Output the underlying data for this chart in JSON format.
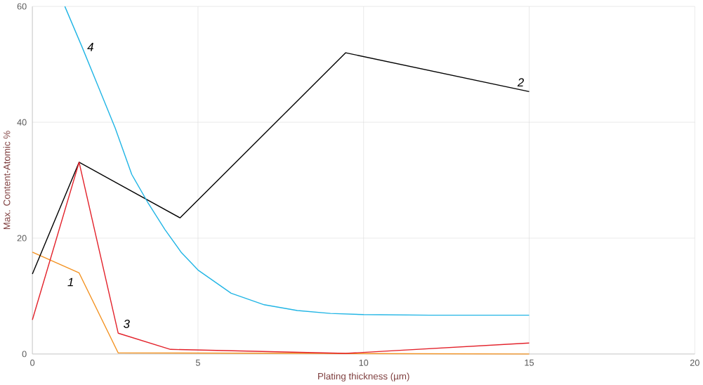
{
  "chart_data": {
    "type": "line",
    "xlabel": "Plating thickness (µm)",
    "ylabel": "Max. Content-Atomic %",
    "xlim": [
      0,
      20
    ],
    "xticks": [
      0,
      5,
      10,
      15,
      20
    ],
    "ylim": [
      0,
      60
    ],
    "yticks": [
      0,
      20,
      40,
      60
    ],
    "grid": true,
    "marker": "none",
    "line_style": "solid",
    "series": [
      {
        "name": "*1*",
        "color": "#f39221",
        "x": [
          0,
          1.41,
          2.59,
          8.8,
          15
        ],
        "values": [
          17.6,
          14,
          0.2,
          0.1,
          0
        ]
      },
      {
        "name": "*2*",
        "color": "#000000",
        "x": [
          0,
          1.41,
          4.46,
          9.46,
          15
        ],
        "values": [
          13.8,
          33.1,
          23.5,
          52,
          45.3
        ]
      },
      {
        "name": "*3*",
        "color": "#e3222b",
        "x": [
          0,
          1.41,
          2.59,
          4.17,
          9.46,
          15
        ],
        "values": [
          5.9,
          33.1,
          3.6,
          0.8,
          0.1,
          1.9
        ]
      },
      {
        "name": "*4*",
        "color": "#21b5e5",
        "x": [
          0.98,
          1.5,
          2,
          2.5,
          3,
          3.5,
          4,
          4.5,
          5,
          6,
          7,
          8,
          9,
          10,
          12,
          15
        ],
        "values": [
          60,
          53,
          46,
          39,
          31,
          26,
          21.5,
          17.5,
          14.5,
          10.5,
          8.5,
          7.5,
          7,
          6.8,
          6.7,
          6.7
        ]
      }
    ]
  }
}
